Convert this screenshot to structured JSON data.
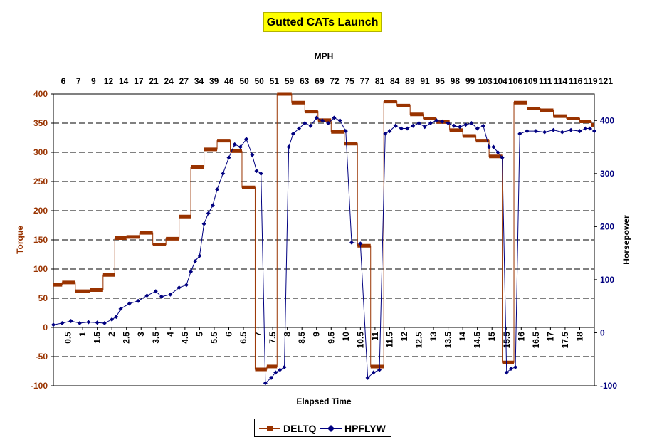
{
  "chart_data": {
    "type": "line",
    "title": "Gutted CATs Launch",
    "xlabel": "Elapsed Time",
    "x2label": "MPH",
    "ylabel": "Torque",
    "y2label": "Horsepower",
    "ylim": [
      -100,
      400
    ],
    "y2lim": [
      -100,
      450
    ],
    "xlim": [
      0,
      18.5
    ],
    "y_ticks": [
      "-100",
      "-50",
      "0",
      "50",
      "100",
      "150",
      "200",
      "250",
      "300",
      "350",
      "400"
    ],
    "y2_ticks": [
      "-100",
      "0",
      "100",
      "200",
      "300",
      "400"
    ],
    "x_ticks": [
      "0.5",
      "1",
      "1.5",
      "2",
      "2.5",
      "3",
      "3.5",
      "4",
      "4.5",
      "5",
      "5.5",
      "6",
      "6.5",
      "7",
      "7.5",
      "8",
      "8.5",
      "9",
      "9.5",
      "10",
      "10.5",
      "11",
      "11.5",
      "12",
      "12.5",
      "13",
      "13.5",
      "14",
      "14.5",
      "15",
      "15.5",
      "16",
      "16.5",
      "17",
      "17.5",
      "18"
    ],
    "top_ticks": [
      "6",
      "7",
      "9",
      "12",
      "14",
      "17",
      "21",
      "24",
      "27",
      "34",
      "39",
      "46",
      "50",
      "50",
      "51",
      "59",
      "63",
      "69",
      "72",
      "75",
      "77",
      "81",
      "84",
      "89",
      "91",
      "95",
      "98",
      "99",
      "103",
      "104",
      "106",
      "109",
      "111",
      "114",
      "116",
      "119",
      "121"
    ],
    "grid": "horizontal-dashed",
    "legend_position": "bottom",
    "series": [
      {
        "name": "DELTQ",
        "axis": "left",
        "color": "#993300",
        "points": [
          [
            0,
            73
          ],
          [
            0.3,
            73
          ],
          [
            0.3,
            77
          ],
          [
            0.75,
            77
          ],
          [
            0.75,
            62
          ],
          [
            1.25,
            62
          ],
          [
            1.25,
            64
          ],
          [
            1.7,
            64
          ],
          [
            1.7,
            90
          ],
          [
            2.1,
            90
          ],
          [
            2.1,
            153
          ],
          [
            2.5,
            153
          ],
          [
            2.5,
            155
          ],
          [
            2.95,
            155
          ],
          [
            2.95,
            162
          ],
          [
            3.4,
            162
          ],
          [
            3.4,
            142
          ],
          [
            3.85,
            142
          ],
          [
            3.85,
            152
          ],
          [
            4.3,
            152
          ],
          [
            4.3,
            190
          ],
          [
            4.7,
            190
          ],
          [
            4.7,
            275
          ],
          [
            5.15,
            275
          ],
          [
            5.15,
            305
          ],
          [
            5.6,
            305
          ],
          [
            5.6,
            320
          ],
          [
            6.05,
            320
          ],
          [
            6.05,
            302
          ],
          [
            6.45,
            302
          ],
          [
            6.45,
            240
          ],
          [
            6.9,
            240
          ],
          [
            6.9,
            -72
          ],
          [
            7.3,
            -72
          ],
          [
            7.3,
            -67
          ],
          [
            7.65,
            -67
          ],
          [
            7.65,
            400
          ],
          [
            8.15,
            400
          ],
          [
            8.15,
            385
          ],
          [
            8.6,
            385
          ],
          [
            8.6,
            370
          ],
          [
            9.05,
            370
          ],
          [
            9.05,
            355
          ],
          [
            9.5,
            355
          ],
          [
            9.5,
            335
          ],
          [
            9.95,
            335
          ],
          [
            9.95,
            315
          ],
          [
            10.4,
            315
          ],
          [
            10.4,
            140
          ],
          [
            10.85,
            140
          ],
          [
            10.85,
            -67
          ],
          [
            11.3,
            -67
          ],
          [
            11.3,
            387
          ],
          [
            11.75,
            387
          ],
          [
            11.75,
            380
          ],
          [
            12.2,
            380
          ],
          [
            12.2,
            365
          ],
          [
            12.65,
            365
          ],
          [
            12.65,
            358
          ],
          [
            13.1,
            358
          ],
          [
            13.1,
            352
          ],
          [
            13.55,
            352
          ],
          [
            13.55,
            338
          ],
          [
            14.0,
            338
          ],
          [
            14.0,
            328
          ],
          [
            14.45,
            328
          ],
          [
            14.45,
            320
          ],
          [
            14.9,
            320
          ],
          [
            14.9,
            293
          ],
          [
            15.35,
            293
          ],
          [
            15.35,
            -60
          ],
          [
            15.75,
            -60
          ],
          [
            15.75,
            385
          ],
          [
            16.2,
            385
          ],
          [
            16.2,
            375
          ],
          [
            16.65,
            375
          ],
          [
            16.65,
            372
          ],
          [
            17.1,
            372
          ],
          [
            17.1,
            362
          ],
          [
            17.55,
            362
          ],
          [
            17.55,
            358
          ],
          [
            18.0,
            358
          ],
          [
            18.0,
            353
          ],
          [
            18.4,
            353
          ],
          [
            18.4,
            347
          ],
          [
            18.5,
            347
          ]
        ]
      },
      {
        "name": "HPFLYW",
        "axis": "right",
        "color": "#000080",
        "points": [
          [
            0,
            15
          ],
          [
            0.3,
            18
          ],
          [
            0.6,
            22
          ],
          [
            0.9,
            18
          ],
          [
            1.2,
            20
          ],
          [
            1.5,
            19
          ],
          [
            1.75,
            18
          ],
          [
            2.0,
            25
          ],
          [
            2.15,
            30
          ],
          [
            2.3,
            45
          ],
          [
            2.6,
            55
          ],
          [
            2.9,
            60
          ],
          [
            3.2,
            70
          ],
          [
            3.5,
            78
          ],
          [
            3.7,
            68
          ],
          [
            4.0,
            72
          ],
          [
            4.3,
            85
          ],
          [
            4.55,
            90
          ],
          [
            4.7,
            115
          ],
          [
            4.85,
            135
          ],
          [
            5.0,
            145
          ],
          [
            5.15,
            205
          ],
          [
            5.3,
            225
          ],
          [
            5.45,
            240
          ],
          [
            5.6,
            270
          ],
          [
            5.8,
            300
          ],
          [
            6.0,
            330
          ],
          [
            6.2,
            355
          ],
          [
            6.4,
            350
          ],
          [
            6.6,
            365
          ],
          [
            6.8,
            335
          ],
          [
            6.95,
            305
          ],
          [
            7.1,
            300
          ],
          [
            7.25,
            -95
          ],
          [
            7.45,
            -85
          ],
          [
            7.6,
            -75
          ],
          [
            7.75,
            -70
          ],
          [
            7.9,
            -65
          ],
          [
            8.05,
            350
          ],
          [
            8.2,
            375
          ],
          [
            8.4,
            385
          ],
          [
            8.6,
            395
          ],
          [
            8.8,
            390
          ],
          [
            9.0,
            405
          ],
          [
            9.2,
            400
          ],
          [
            9.4,
            395
          ],
          [
            9.6,
            405
          ],
          [
            9.8,
            400
          ],
          [
            10.0,
            380
          ],
          [
            10.2,
            170
          ],
          [
            10.5,
            168
          ],
          [
            10.75,
            -85
          ],
          [
            10.95,
            -75
          ],
          [
            11.15,
            -70
          ],
          [
            11.35,
            375
          ],
          [
            11.5,
            380
          ],
          [
            11.7,
            390
          ],
          [
            11.9,
            385
          ],
          [
            12.1,
            385
          ],
          [
            12.3,
            390
          ],
          [
            12.5,
            395
          ],
          [
            12.7,
            388
          ],
          [
            12.9,
            395
          ],
          [
            13.1,
            400
          ],
          [
            13.3,
            398
          ],
          [
            13.5,
            395
          ],
          [
            13.7,
            390
          ],
          [
            13.9,
            388
          ],
          [
            14.1,
            392
          ],
          [
            14.3,
            395
          ],
          [
            14.5,
            385
          ],
          [
            14.7,
            390
          ],
          [
            14.9,
            350
          ],
          [
            15.05,
            350
          ],
          [
            15.2,
            340
          ],
          [
            15.35,
            330
          ],
          [
            15.5,
            -75
          ],
          [
            15.65,
            -68
          ],
          [
            15.8,
            -65
          ],
          [
            15.95,
            375
          ],
          [
            16.2,
            380
          ],
          [
            16.5,
            380
          ],
          [
            16.8,
            378
          ],
          [
            17.1,
            382
          ],
          [
            17.4,
            378
          ],
          [
            17.7,
            382
          ],
          [
            18.0,
            380
          ],
          [
            18.2,
            385
          ],
          [
            18.35,
            385
          ],
          [
            18.5,
            380
          ]
        ]
      }
    ]
  }
}
